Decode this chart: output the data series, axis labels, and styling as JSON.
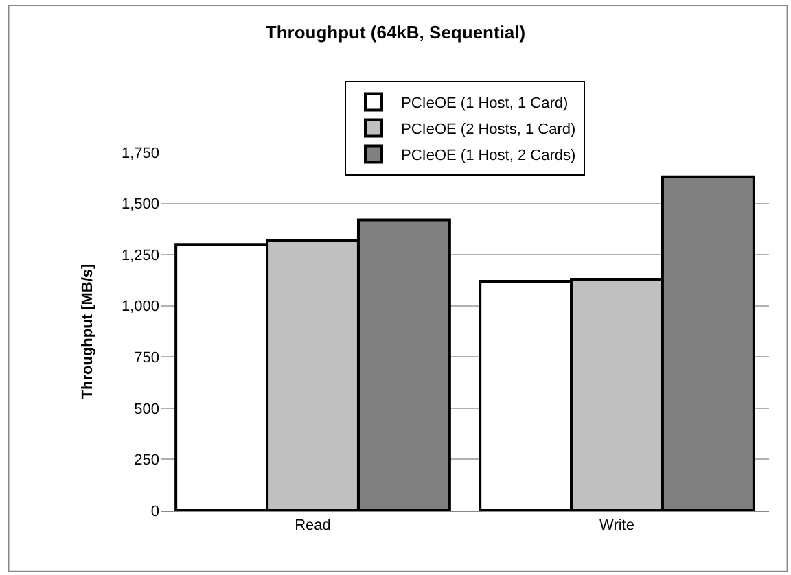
{
  "chart_data": {
    "type": "bar",
    "title": "Throughput (64kB, Sequential)",
    "ylabel": "Throughput [MB/s]",
    "categories": [
      "Read",
      "Write"
    ],
    "series": [
      {
        "name": "PCIeOE (1 Host, 1 Card)",
        "color": "#ffffff",
        "values": [
          1300,
          1120
        ]
      },
      {
        "name": "PCIeOE (2 Hosts, 1 Card)",
        "color": "#c0c0c0",
        "values": [
          1320,
          1130
        ]
      },
      {
        "name": "PCIeOE (1 Host, 2 Cards)",
        "color": "#808080",
        "values": [
          1420,
          1630
        ]
      }
    ],
    "ylim": [
      0,
      1750
    ],
    "yticks": [
      {
        "value": 0,
        "label": "0"
      },
      {
        "value": 250,
        "label": "250"
      },
      {
        "value": 500,
        "label": "500"
      },
      {
        "value": 750,
        "label": "750"
      },
      {
        "value": 1000,
        "label": "1,000"
      },
      {
        "value": 1250,
        "label": "1,250"
      },
      {
        "value": 1500,
        "label": "1,500"
      },
      {
        "value": 1750,
        "label": "1,750"
      }
    ],
    "grid": "y",
    "legend": "top"
  }
}
